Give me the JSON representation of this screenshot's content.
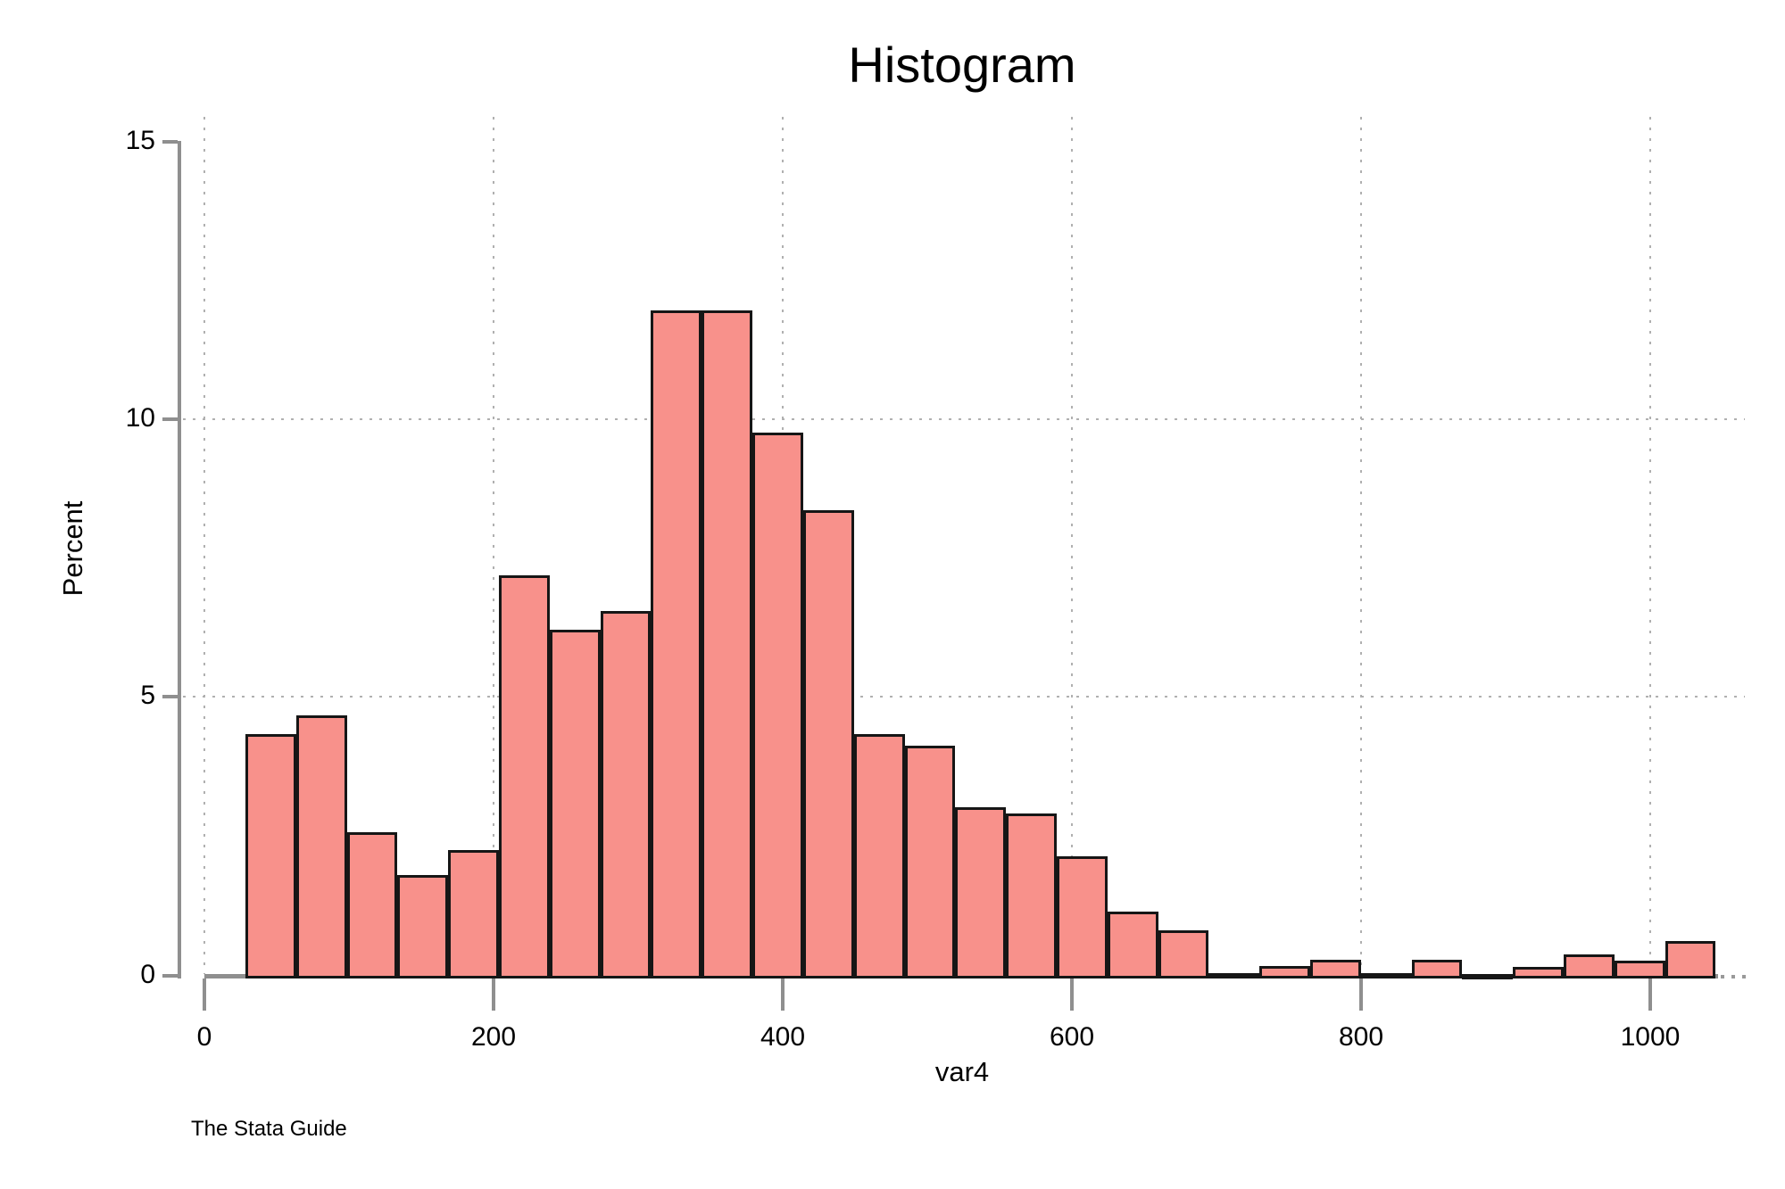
{
  "title": "Histogram",
  "note": "The Stata Guide",
  "chart_data": {
    "type": "bar",
    "subtype": "histogram",
    "title": "Histogram",
    "xlabel": "var4",
    "ylabel": "Percent",
    "x_tick_values": [
      0,
      200,
      400,
      600,
      800,
      1000
    ],
    "y_tick_values": [
      0,
      5,
      10,
      15
    ],
    "ylim": [
      0,
      15
    ],
    "xlim": [
      -18,
      1066
    ],
    "grid_x_values": [
      0,
      200,
      400,
      600,
      800,
      1000
    ],
    "grid_y_values": [
      5,
      10
    ],
    "grid_style": "dotted",
    "legend_position": "none",
    "bin_start": 28,
    "bin_width": 35,
    "bars_percent": [
      4.36,
      4.69,
      2.59,
      1.82,
      2.27,
      7.22,
      6.24,
      6.58,
      12.0,
      12.0,
      9.79,
      8.39,
      4.36,
      4.15,
      3.04,
      2.93,
      2.15,
      1.16,
      0.82,
      0.05,
      0.18,
      0.29,
      0.05,
      0.29,
      0.04,
      0.16,
      0.39,
      0.27,
      0.63
    ],
    "colors": {
      "bar_fill": "#f8918b",
      "bar_border": "#161616",
      "axis": "#8f8f8f",
      "grid": "#b0b0b0",
      "text": "#000000",
      "background": "#ffffff"
    }
  }
}
